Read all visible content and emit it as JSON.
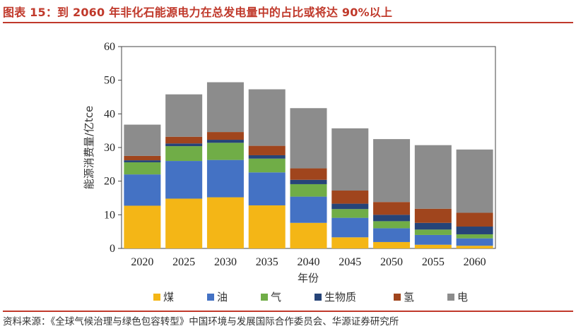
{
  "header": {
    "title": "图表 15：到 2060 年非化石能源电力在总发电量中的占比或将达 90%以上"
  },
  "footer": {
    "source": "资料来源：《全球气候治理与绿色包容转型》中国环境与发展国际合作委员会、华源证券研究所"
  },
  "chart_data": {
    "type": "bar",
    "stacked": true,
    "categories": [
      "2020",
      "2025",
      "2030",
      "2035",
      "2040",
      "2045",
      "2050",
      "2055",
      "2060"
    ],
    "xlabel": "年份",
    "ylabel": "能源消费量/亿tce",
    "ylim": [
      0,
      60
    ],
    "yticks": [
      0,
      10,
      20,
      30,
      40,
      50,
      60
    ],
    "grid": false,
    "legend": "bottom",
    "series": [
      {
        "name": "煤",
        "color": "#f4b616",
        "values": [
          12.7,
          14.8,
          15.2,
          12.8,
          7.6,
          3.3,
          1.9,
          1.1,
          0.8
        ]
      },
      {
        "name": "油",
        "color": "#4472c4",
        "values": [
          9.3,
          11.2,
          11.1,
          9.8,
          7.8,
          5.8,
          4.1,
          2.9,
          2.2
        ]
      },
      {
        "name": "气",
        "color": "#70ad47",
        "values": [
          3.6,
          4.4,
          5.1,
          4.1,
          3.7,
          2.6,
          2.1,
          1.6,
          1.2
        ]
      },
      {
        "name": "生物质",
        "color": "#264478",
        "values": [
          0.6,
          0.8,
          0.9,
          1.0,
          1.3,
          1.6,
          1.9,
          2.0,
          2.3
        ]
      },
      {
        "name": "氢",
        "color": "#a0451d",
        "values": [
          1.3,
          2.0,
          2.3,
          2.8,
          3.4,
          3.9,
          3.8,
          4.2,
          4.1
        ]
      },
      {
        "name": "电",
        "color": "#8c8c8c",
        "values": [
          9.3,
          12.6,
          14.8,
          16.8,
          17.9,
          18.5,
          18.7,
          18.9,
          18.8
        ]
      }
    ]
  }
}
